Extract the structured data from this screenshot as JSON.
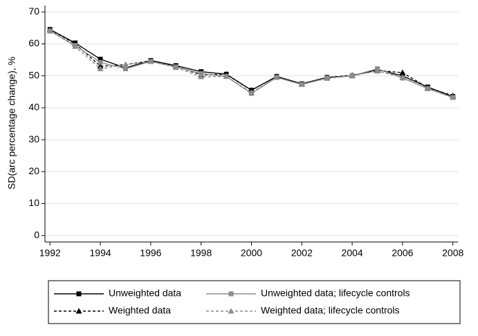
{
  "chart_data": {
    "type": "line",
    "y_label": "SD(arc percentage change), %",
    "x": [
      1992,
      1993,
      1994,
      1995,
      1996,
      1997,
      1998,
      1999,
      2000,
      2001,
      2002,
      2003,
      2004,
      2005,
      2006,
      2007,
      2008
    ],
    "series": [
      {
        "name": "Unweighted data",
        "color": "#000000",
        "marker": "square",
        "dashed": false,
        "values": [
          64.5,
          60.3,
          55.2,
          52.5,
          54.8,
          53.2,
          51.3,
          50.5,
          45.5,
          49.8,
          47.5,
          49.5,
          50.0,
          52.0,
          50.0,
          46.5,
          43.5
        ]
      },
      {
        "name": "Weighted data",
        "color": "#000000",
        "marker": "triangle",
        "dashed": true,
        "values": [
          64.5,
          60.0,
          53.0,
          53.5,
          54.7,
          53.0,
          50.3,
          50.5,
          45.5,
          49.8,
          47.5,
          49.5,
          50.2,
          51.7,
          51.0,
          46.3,
          43.8
        ]
      },
      {
        "name": "Unweighted data; lifecycle controls",
        "color": "#8c8c8c",
        "marker": "square",
        "dashed": false,
        "values": [
          64.0,
          59.5,
          54.2,
          52.2,
          54.5,
          52.8,
          50.7,
          49.8,
          44.5,
          49.5,
          47.3,
          49.3,
          50.0,
          52.2,
          49.3,
          46.0,
          43.2
        ]
      },
      {
        "name": "Weighted data; lifecycle controls",
        "color": "#8c8c8c",
        "marker": "triangle",
        "dashed": true,
        "values": [
          64.2,
          59.2,
          52.2,
          53.5,
          54.5,
          52.6,
          49.7,
          49.8,
          44.8,
          49.5,
          47.3,
          49.2,
          50.0,
          51.5,
          49.5,
          46.0,
          43.3
        ]
      }
    ],
    "xlim": [
      1991.8,
      2008.2
    ],
    "xticks": [
      1992,
      1994,
      1996,
      1998,
      2000,
      2002,
      2004,
      2006,
      2008
    ],
    "ylim": [
      -2,
      72
    ],
    "yticks": [
      0,
      10,
      20,
      30,
      40,
      50,
      60,
      70
    ],
    "grid": true,
    "legend": "bottom"
  }
}
